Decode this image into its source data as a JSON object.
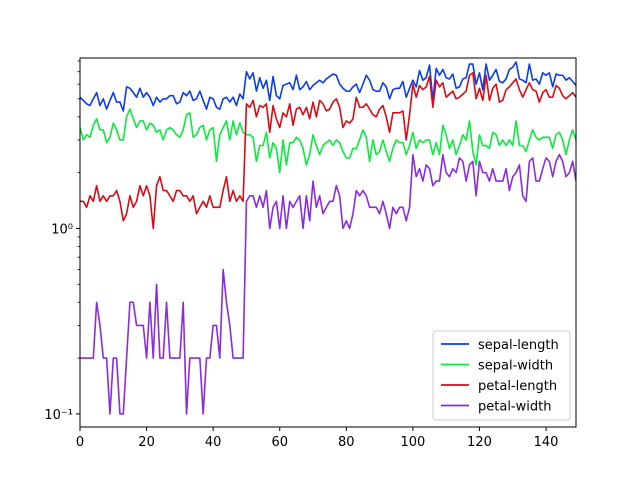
{
  "chart_data": {
    "type": "line",
    "title": "",
    "xlabel": "",
    "ylabel": "",
    "yscale": "log",
    "xlim": [
      0,
      149
    ],
    "ylim": [
      0.085,
      8.3
    ],
    "grid": false,
    "legend_placement": "lower-right",
    "x_ticks": [
      {
        "value": 0,
        "label": "0"
      },
      {
        "value": 20,
        "label": "20"
      },
      {
        "value": 40,
        "label": "40"
      },
      {
        "value": 60,
        "label": "60"
      },
      {
        "value": 80,
        "label": "80"
      },
      {
        "value": 100,
        "label": "100"
      },
      {
        "value": 120,
        "label": "120"
      },
      {
        "value": 140,
        "label": "140"
      }
    ],
    "y_major_ticks": [
      {
        "value": 0.1,
        "label": "10⁻¹"
      },
      {
        "value": 1,
        "label": "10⁰"
      }
    ],
    "y_minor_ticks": [
      0.2,
      0.3,
      0.4,
      0.5,
      0.6,
      0.7,
      0.8,
      0.9,
      2,
      3,
      4,
      5,
      6,
      7,
      8
    ],
    "series": [
      {
        "name": "sepal-length",
        "color": "#0a3cf0",
        "values": [
          5.1,
          4.9,
          4.7,
          4.6,
          5.0,
          5.4,
          4.6,
          5.0,
          4.4,
          4.9,
          5.4,
          4.8,
          4.8,
          4.3,
          5.8,
          5.7,
          5.4,
          5.1,
          5.7,
          5.1,
          5.4,
          5.1,
          4.6,
          5.1,
          4.8,
          5.0,
          5.0,
          5.2,
          5.2,
          4.7,
          4.8,
          5.4,
          5.2,
          5.5,
          4.9,
          5.0,
          5.5,
          4.9,
          4.4,
          5.1,
          5.0,
          4.5,
          4.4,
          5.0,
          5.1,
          4.8,
          5.1,
          4.6,
          5.3,
          5.0,
          7.0,
          6.4,
          6.9,
          5.5,
          6.5,
          5.7,
          6.3,
          4.9,
          6.6,
          5.2,
          5.0,
          5.9,
          6.0,
          6.1,
          5.6,
          6.7,
          5.6,
          5.8,
          6.2,
          5.6,
          5.9,
          6.1,
          6.3,
          6.1,
          6.4,
          6.6,
          6.8,
          6.7,
          6.0,
          5.7,
          5.5,
          5.5,
          5.8,
          6.0,
          5.4,
          6.0,
          6.7,
          6.3,
          5.6,
          5.5,
          5.5,
          6.1,
          5.8,
          5.0,
          5.6,
          5.7,
          5.7,
          6.2,
          5.1,
          5.7,
          6.3,
          5.8,
          7.1,
          6.3,
          6.5,
          7.6,
          4.9,
          7.3,
          6.7,
          7.2,
          6.5,
          6.4,
          6.8,
          5.7,
          5.8,
          6.4,
          6.5,
          7.7,
          7.7,
          6.0,
          6.9,
          5.6,
          7.7,
          6.3,
          6.7,
          7.2,
          6.2,
          6.1,
          6.4,
          7.2,
          7.4,
          7.9,
          6.4,
          6.3,
          6.1,
          7.7,
          6.3,
          6.4,
          6.0,
          6.9,
          6.7,
          6.9,
          5.8,
          6.8,
          6.7,
          6.7,
          6.3,
          6.5,
          6.2,
          5.9
        ]
      },
      {
        "name": "sepal-width",
        "color": "#0aeb3c",
        "values": [
          3.5,
          3.0,
          3.2,
          3.1,
          3.6,
          3.9,
          3.4,
          3.4,
          2.9,
          3.1,
          3.7,
          3.4,
          3.0,
          3.0,
          4.0,
          4.4,
          3.9,
          3.5,
          3.8,
          3.8,
          3.4,
          3.7,
          3.6,
          3.3,
          3.4,
          3.0,
          3.4,
          3.5,
          3.4,
          3.2,
          3.1,
          3.4,
          4.1,
          4.2,
          3.1,
          3.2,
          3.5,
          3.6,
          3.0,
          3.4,
          3.5,
          2.3,
          3.2,
          3.5,
          3.8,
          3.0,
          3.8,
          3.2,
          3.7,
          3.3,
          3.2,
          3.2,
          3.1,
          2.3,
          2.8,
          2.8,
          3.3,
          2.4,
          2.9,
          2.7,
          2.0,
          3.0,
          2.2,
          2.9,
          2.9,
          3.1,
          3.0,
          2.7,
          2.2,
          2.5,
          3.2,
          2.8,
          2.5,
          2.8,
          2.9,
          3.0,
          2.8,
          3.0,
          2.9,
          2.6,
          2.4,
          2.4,
          2.7,
          2.7,
          3.0,
          3.4,
          3.1,
          2.3,
          3.0,
          2.5,
          2.6,
          3.0,
          2.6,
          2.3,
          2.7,
          3.0,
          2.9,
          2.9,
          2.5,
          2.8,
          3.3,
          2.7,
          3.0,
          2.9,
          3.0,
          3.0,
          2.5,
          2.9,
          2.5,
          3.6,
          3.2,
          2.7,
          3.0,
          2.5,
          2.8,
          3.2,
          3.0,
          3.8,
          2.6,
          2.2,
          3.2,
          2.8,
          2.8,
          2.7,
          3.3,
          3.2,
          2.8,
          3.0,
          2.8,
          3.0,
          2.8,
          3.8,
          2.8,
          2.8,
          2.6,
          3.0,
          3.4,
          3.1,
          3.0,
          3.1,
          3.1,
          3.1,
          2.7,
          3.2,
          3.3,
          3.0,
          2.5,
          3.0,
          3.4,
          3.0
        ]
      },
      {
        "name": "petal-length",
        "color": "#dc0a14",
        "values": [
          1.4,
          1.4,
          1.3,
          1.5,
          1.4,
          1.7,
          1.4,
          1.5,
          1.4,
          1.5,
          1.5,
          1.6,
          1.4,
          1.1,
          1.2,
          1.5,
          1.3,
          1.4,
          1.7,
          1.5,
          1.7,
          1.5,
          1.0,
          1.7,
          1.9,
          1.6,
          1.6,
          1.5,
          1.4,
          1.6,
          1.6,
          1.5,
          1.5,
          1.4,
          1.5,
          1.2,
          1.3,
          1.4,
          1.3,
          1.5,
          1.3,
          1.3,
          1.3,
          1.6,
          1.9,
          1.4,
          1.6,
          1.4,
          1.5,
          1.4,
          4.7,
          4.5,
          4.9,
          4.0,
          4.6,
          4.5,
          4.7,
          3.3,
          4.6,
          3.9,
          3.5,
          4.2,
          4.0,
          4.7,
          3.6,
          4.4,
          4.5,
          4.1,
          4.5,
          3.9,
          4.8,
          4.0,
          4.9,
          4.7,
          4.3,
          4.4,
          4.8,
          5.0,
          4.5,
          3.5,
          3.8,
          3.7,
          3.9,
          5.1,
          4.5,
          4.5,
          4.7,
          4.4,
          4.1,
          4.0,
          4.4,
          4.6,
          4.0,
          3.3,
          4.2,
          4.2,
          4.2,
          4.3,
          3.0,
          4.1,
          6.0,
          5.1,
          5.9,
          5.6,
          5.8,
          6.6,
          4.5,
          6.3,
          5.8,
          6.1,
          5.1,
          5.3,
          5.5,
          5.0,
          5.1,
          5.3,
          5.5,
          6.7,
          6.9,
          5.0,
          5.7,
          4.9,
          6.7,
          4.9,
          5.7,
          6.0,
          4.8,
          4.9,
          5.6,
          5.8,
          6.1,
          6.4,
          5.6,
          5.1,
          5.6,
          6.1,
          5.6,
          5.5,
          4.8,
          5.4,
          5.6,
          5.1,
          5.1,
          5.9,
          5.7,
          5.2,
          5.0,
          5.2,
          5.4,
          5.1
        ]
      },
      {
        "name": "petal-width",
        "color": "#8a2be2",
        "values": [
          0.2,
          0.2,
          0.2,
          0.2,
          0.2,
          0.4,
          0.3,
          0.2,
          0.2,
          0.1,
          0.2,
          0.2,
          0.1,
          0.1,
          0.2,
          0.4,
          0.4,
          0.3,
          0.3,
          0.3,
          0.2,
          0.4,
          0.2,
          0.5,
          0.2,
          0.2,
          0.4,
          0.2,
          0.2,
          0.2,
          0.2,
          0.4,
          0.1,
          0.2,
          0.2,
          0.2,
          0.2,
          0.1,
          0.2,
          0.2,
          0.3,
          0.3,
          0.2,
          0.6,
          0.4,
          0.3,
          0.2,
          0.2,
          0.2,
          0.2,
          1.4,
          1.5,
          1.5,
          1.3,
          1.5,
          1.3,
          1.6,
          1.0,
          1.3,
          1.4,
          1.0,
          1.5,
          1.0,
          1.4,
          1.3,
          1.4,
          1.5,
          1.0,
          1.5,
          1.1,
          1.8,
          1.3,
          1.5,
          1.2,
          1.3,
          1.4,
          1.4,
          1.7,
          1.5,
          1.0,
          1.1,
          1.0,
          1.2,
          1.6,
          1.5,
          1.6,
          1.5,
          1.3,
          1.3,
          1.3,
          1.2,
          1.4,
          1.2,
          1.0,
          1.3,
          1.2,
          1.3,
          1.3,
          1.1,
          1.3,
          2.5,
          1.9,
          2.1,
          1.8,
          2.2,
          2.1,
          1.7,
          1.8,
          1.8,
          2.5,
          2.0,
          1.9,
          2.1,
          2.0,
          2.4,
          2.3,
          1.8,
          2.2,
          2.3,
          1.5,
          2.3,
          2.0,
          2.0,
          1.8,
          2.1,
          1.8,
          1.8,
          1.8,
          2.1,
          1.6,
          1.9,
          2.0,
          2.2,
          1.5,
          1.4,
          2.3,
          2.4,
          1.8,
          1.8,
          2.1,
          2.4,
          2.3,
          1.9,
          2.3,
          2.5,
          2.3,
          1.9,
          2.0,
          2.3,
          1.8
        ]
      }
    ]
  }
}
